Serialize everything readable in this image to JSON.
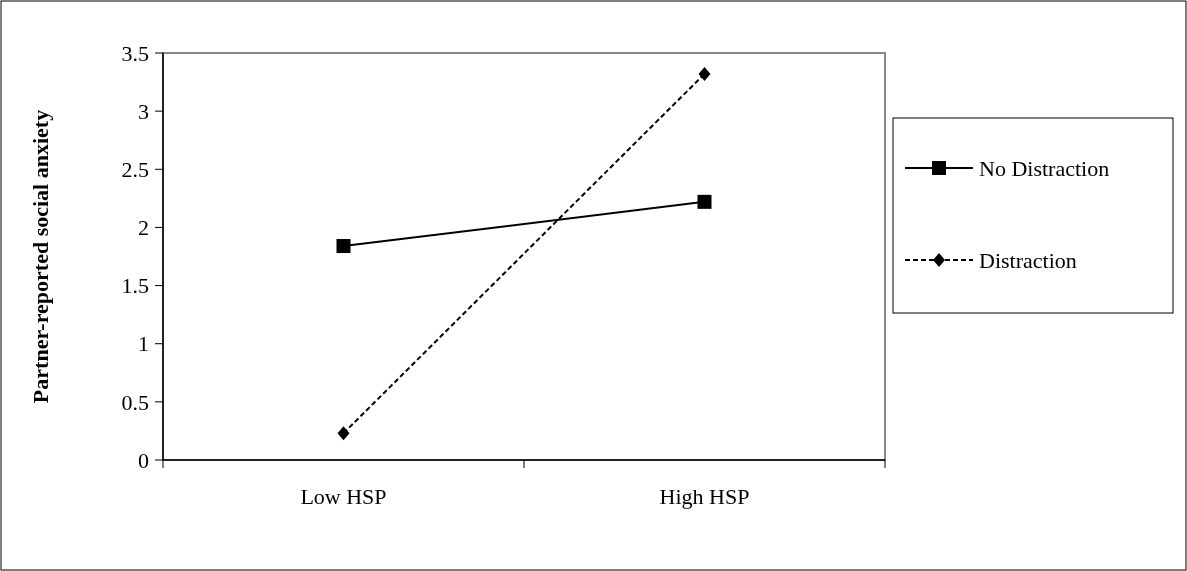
{
  "chart_data": {
    "type": "line",
    "ylabel": "Partner-reported social anxiety",
    "categories": [
      "Low HSP",
      "High HSP"
    ],
    "ylim": [
      0,
      3.5
    ],
    "yticks": [
      0,
      0.5,
      1,
      1.5,
      2,
      2.5,
      3,
      3.5
    ],
    "grid": false,
    "legend": "right",
    "series": [
      {
        "name": "No Distraction",
        "color": "#000000",
        "values": [
          1.84,
          2.22
        ],
        "marker": "square",
        "line_style": "solid"
      },
      {
        "name": "Distraction",
        "color": "#000000",
        "values": [
          0.23,
          3.32
        ],
        "marker": "diamond",
        "line_style": "dashed"
      }
    ]
  }
}
